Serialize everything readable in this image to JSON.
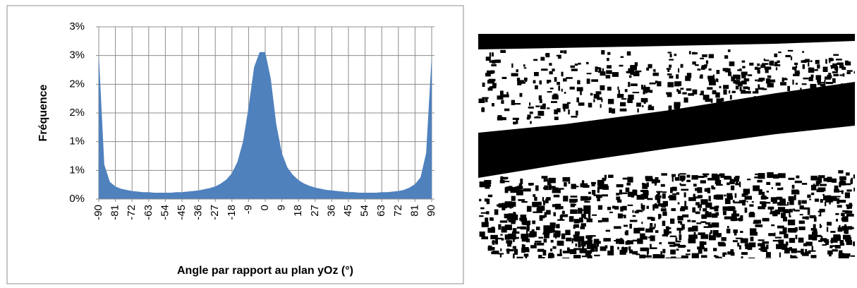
{
  "chart_data": {
    "type": "area",
    "x_label": "Angle par rapport au plan yOz (°)",
    "y_label": "Fréquence",
    "color": "#4f81bd",
    "grid": true,
    "x": [
      -90,
      -87,
      -84,
      -81,
      -78,
      -75,
      -72,
      -69,
      -66,
      -63,
      -60,
      -57,
      -54,
      -51,
      -48,
      -45,
      -42,
      -39,
      -36,
      -33,
      -30,
      -27,
      -24,
      -21,
      -18,
      -15,
      -12,
      -9,
      -6,
      -3,
      0,
      3,
      6,
      9,
      12,
      15,
      18,
      21,
      24,
      27,
      30,
      33,
      36,
      39,
      42,
      45,
      48,
      51,
      54,
      57,
      60,
      63,
      66,
      69,
      72,
      75,
      78,
      81,
      84,
      87,
      90
    ],
    "values": [
      2.55,
      0.6,
      0.3,
      0.22,
      0.18,
      0.16,
      0.14,
      0.13,
      0.12,
      0.12,
      0.11,
      0.11,
      0.11,
      0.11,
      0.12,
      0.12,
      0.13,
      0.14,
      0.15,
      0.17,
      0.19,
      0.22,
      0.27,
      0.34,
      0.45,
      0.65,
      1.0,
      1.6,
      2.3,
      2.56,
      2.56,
      2.1,
      1.3,
      0.8,
      0.55,
      0.42,
      0.33,
      0.27,
      0.23,
      0.2,
      0.18,
      0.16,
      0.15,
      0.14,
      0.13,
      0.12,
      0.12,
      0.11,
      0.11,
      0.11,
      0.11,
      0.12,
      0.12,
      0.13,
      0.14,
      0.16,
      0.2,
      0.26,
      0.38,
      0.8,
      2.5
    ],
    "xlim": [
      -90,
      90
    ],
    "xticks": [
      -90,
      -81,
      -72,
      -63,
      -54,
      -45,
      -36,
      -27,
      -18,
      -9,
      0,
      9,
      18,
      27,
      36,
      45,
      54,
      63,
      72,
      81,
      90
    ],
    "ylim": [
      0,
      3
    ],
    "yticks": [
      {
        "value": 0,
        "label": "0%"
      },
      {
        "value": 0.5,
        "label": "1%"
      },
      {
        "value": 1,
        "label": "1%"
      },
      {
        "value": 1.5,
        "label": "2%"
      },
      {
        "value": 2,
        "label": "2%"
      },
      {
        "value": 2.5,
        "label": "3%"
      },
      {
        "value": 3,
        "label": "3%"
      }
    ]
  }
}
